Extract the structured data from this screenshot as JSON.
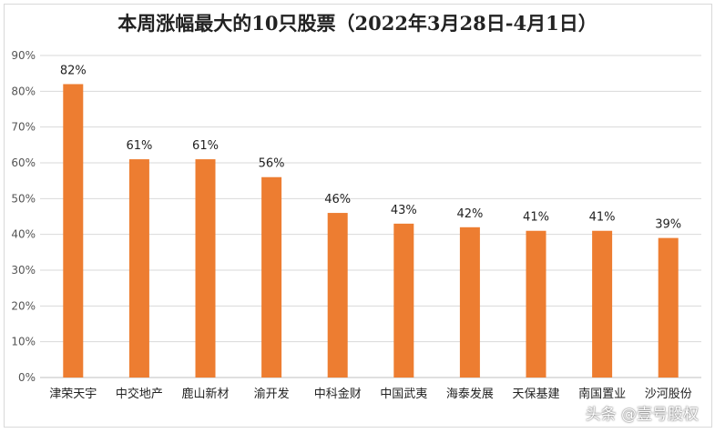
{
  "chart_data": {
    "type": "bar",
    "title": "本周涨幅最大的10只股票（2022年3月28日-4月1日）",
    "categories": [
      "津荣天宇",
      "中交地产",
      "鹿山新材",
      "渝开发",
      "中科金财",
      "中国武夷",
      "海泰发展",
      "天保基建",
      "南国置业",
      "沙河股份"
    ],
    "values": [
      82,
      61,
      61,
      56,
      46,
      43,
      42,
      41,
      41,
      39
    ],
    "data_labels": [
      "82%",
      "61%",
      "61%",
      "56%",
      "46%",
      "43%",
      "42%",
      "41%",
      "41%",
      "39%"
    ],
    "yticks": [
      "0%",
      "10%",
      "20%",
      "30%",
      "40%",
      "50%",
      "60%",
      "70%",
      "80%",
      "90%"
    ],
    "ylim": [
      0,
      90
    ],
    "xlabel": "",
    "ylabel": "",
    "grid": true,
    "bar_color": "#ED7D31"
  },
  "watermark": "头条 @壹号股权"
}
